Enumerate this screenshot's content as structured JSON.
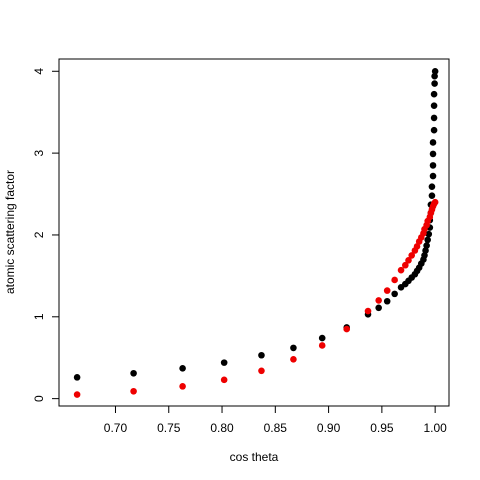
{
  "chart_data": {
    "type": "scatter",
    "title": "",
    "xlabel": "cos theta",
    "ylabel": "atomic scattering factor",
    "xlim": [
      0.647,
      1.013
    ],
    "ylim": [
      -0.09,
      4.15
    ],
    "xticks": [
      0.7,
      0.75,
      0.8,
      0.85,
      0.9,
      0.95,
      1.0
    ],
    "xtick_labels": [
      "0.70",
      "0.75",
      "0.80",
      "0.85",
      "0.90",
      "0.95",
      "1.00"
    ],
    "yticks": [
      0,
      1,
      2,
      3,
      4
    ],
    "ytick_labels": [
      "0",
      "1",
      "2",
      "3",
      "4"
    ],
    "grid": false,
    "legend": "none",
    "series": [
      {
        "color": "#000000",
        "points": [
          [
            0.664,
            0.26
          ],
          [
            0.717,
            0.31
          ],
          [
            0.763,
            0.37
          ],
          [
            0.802,
            0.44
          ],
          [
            0.837,
            0.53
          ],
          [
            0.867,
            0.62
          ],
          [
            0.894,
            0.74
          ],
          [
            0.917,
            0.87
          ],
          [
            0.937,
            1.03
          ],
          [
            0.947,
            1.11
          ],
          [
            0.955,
            1.19
          ],
          [
            0.962,
            1.28
          ],
          [
            0.968,
            1.36
          ],
          [
            0.972,
            1.4
          ],
          [
            0.975,
            1.44
          ],
          [
            0.978,
            1.48
          ],
          [
            0.981,
            1.52
          ],
          [
            0.983,
            1.56
          ],
          [
            0.985,
            1.6
          ],
          [
            0.987,
            1.65
          ],
          [
            0.989,
            1.7
          ],
          [
            0.99,
            1.75
          ],
          [
            0.991,
            1.81
          ],
          [
            0.992,
            1.87
          ],
          [
            0.993,
            1.94
          ],
          [
            0.994,
            2.01
          ],
          [
            0.995,
            2.09
          ],
          [
            0.995,
            2.18
          ],
          [
            0.996,
            2.27
          ],
          [
            0.996,
            2.37
          ],
          [
            0.997,
            2.48
          ],
          [
            0.997,
            2.59
          ],
          [
            0.998,
            2.72
          ],
          [
            0.998,
            2.85
          ],
          [
            0.998,
            2.99
          ],
          [
            0.998,
            3.13
          ],
          [
            0.999,
            3.28
          ],
          [
            0.999,
            3.43
          ],
          [
            0.999,
            3.58
          ],
          [
            0.999,
            3.72
          ],
          [
            0.9995,
            3.85
          ],
          [
            0.9995,
            3.94
          ],
          [
            1.0,
            4.0
          ]
        ]
      },
      {
        "color": "#ee0000",
        "points": [
          [
            0.664,
            0.05
          ],
          [
            0.717,
            0.09
          ],
          [
            0.763,
            0.15
          ],
          [
            0.802,
            0.23
          ],
          [
            0.837,
            0.34
          ],
          [
            0.867,
            0.48
          ],
          [
            0.894,
            0.65
          ],
          [
            0.917,
            0.85
          ],
          [
            0.937,
            1.07
          ],
          [
            0.947,
            1.2
          ],
          [
            0.955,
            1.32
          ],
          [
            0.962,
            1.45
          ],
          [
            0.968,
            1.57
          ],
          [
            0.972,
            1.63
          ],
          [
            0.975,
            1.69
          ],
          [
            0.978,
            1.75
          ],
          [
            0.981,
            1.81
          ],
          [
            0.983,
            1.86
          ],
          [
            0.985,
            1.92
          ],
          [
            0.987,
            1.97
          ],
          [
            0.989,
            2.02
          ],
          [
            0.99,
            2.07
          ],
          [
            0.992,
            2.12
          ],
          [
            0.993,
            2.17
          ],
          [
            0.995,
            2.22
          ],
          [
            0.996,
            2.27
          ],
          [
            0.997,
            2.31
          ],
          [
            0.998,
            2.35
          ],
          [
            0.999,
            2.38
          ],
          [
            1.0,
            2.4
          ]
        ]
      }
    ]
  }
}
